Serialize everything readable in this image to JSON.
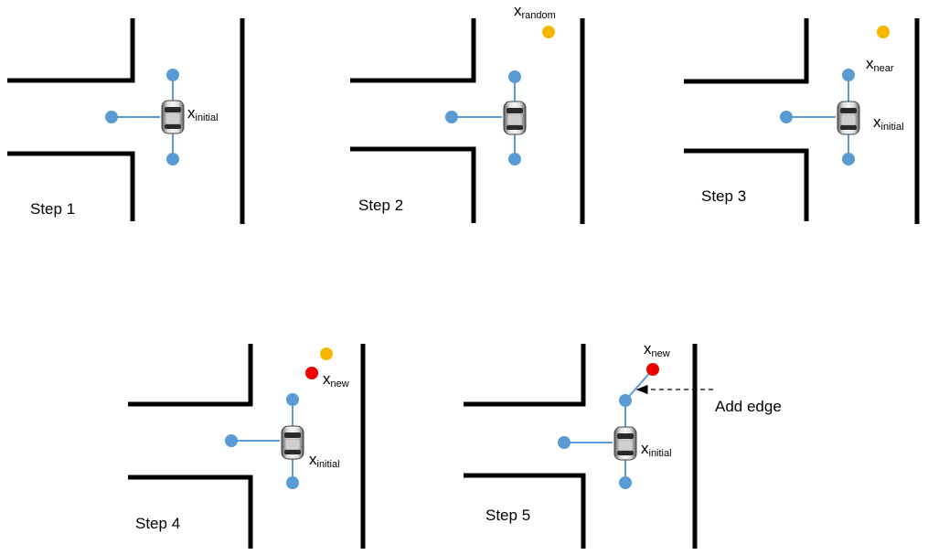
{
  "steps": [
    {
      "label": "Step 1",
      "annotations": {
        "initial_var": "x",
        "initial_sub": "initial"
      }
    },
    {
      "label": "Step 2",
      "annotations": {
        "random_var": "x",
        "random_sub": "random"
      }
    },
    {
      "label": "Step 3",
      "annotations": {
        "near_var": "x",
        "near_sub": "near",
        "initial_var": "x",
        "initial_sub": "initial"
      }
    },
    {
      "label": "Step 4",
      "annotations": {
        "new_var": "x",
        "new_sub": "new",
        "initial_var": "x",
        "initial_sub": "initial"
      }
    },
    {
      "label": "Step 5",
      "annotations": {
        "new_var": "x",
        "new_sub": "new",
        "initial_var": "x",
        "initial_sub": "initial",
        "add_edge": "Add edge"
      }
    }
  ],
  "colors": {
    "tree_node": "#5b9bd5",
    "tree_edge": "#5b9bd5",
    "random_sample": "#f5b800",
    "new_node": "#ee0000",
    "walls": "#000000"
  },
  "icons": {
    "vehicle": "car-top-view-icon"
  }
}
